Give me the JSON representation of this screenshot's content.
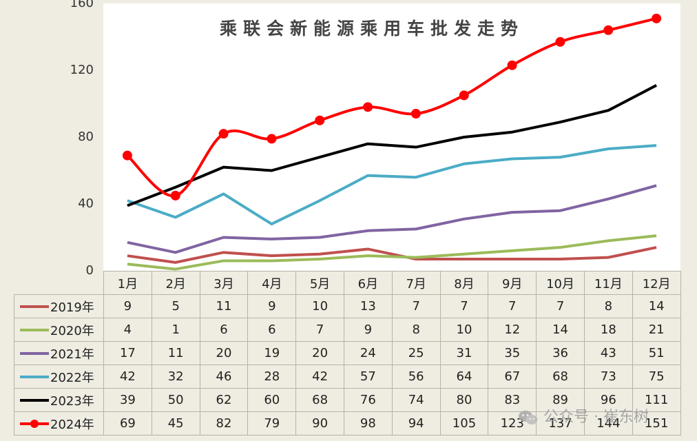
{
  "chart_data": {
    "type": "line",
    "title": "乘联会新能源乘用车批发走势",
    "categories": [
      "1月",
      "2月",
      "3月",
      "4月",
      "5月",
      "6月",
      "7月",
      "8月",
      "9月",
      "10月",
      "11月",
      "12月"
    ],
    "ylim": [
      0,
      160
    ],
    "yticks": [
      "0",
      "40",
      "80",
      "120",
      "160"
    ],
    "series": [
      {
        "name": "2019年",
        "color": "#c0504d",
        "marker": false,
        "values": [
          9,
          5,
          11,
          9,
          10,
          13,
          7,
          7,
          7,
          7,
          8,
          14
        ],
        "labels": [
          "9",
          "5",
          "11",
          "9",
          "10",
          "13",
          "7",
          "7",
          "7",
          "7",
          "8",
          "14"
        ]
      },
      {
        "name": "2020年",
        "color": "#9bbb59",
        "marker": false,
        "values": [
          4,
          1,
          6,
          6,
          7,
          9,
          8,
          10,
          12,
          14,
          18,
          21
        ],
        "labels": [
          "4",
          "1",
          "6",
          "6",
          "7",
          "9",
          "8",
          "10",
          "12",
          "14",
          "18",
          "21"
        ]
      },
      {
        "name": "2021年",
        "color": "#8064a2",
        "marker": false,
        "values": [
          17,
          11,
          20,
          19,
          20,
          24,
          25,
          31,
          35,
          36,
          43,
          51
        ],
        "labels": [
          "17",
          "11",
          "20",
          "19",
          "20",
          "24",
          "25",
          "31",
          "35",
          "36",
          "43",
          "51"
        ]
      },
      {
        "name": "2022年",
        "color": "#4bacc6",
        "marker": false,
        "values": [
          42,
          32,
          46,
          28,
          42,
          57,
          56,
          64,
          67,
          68,
          73,
          75
        ],
        "labels": [
          "42",
          "32",
          "46",
          "28",
          "42",
          "57",
          "56",
          "64",
          "67",
          "68",
          "73",
          "75"
        ]
      },
      {
        "name": "2023年",
        "color": "#000000",
        "marker": false,
        "values": [
          39,
          50,
          62,
          60,
          68,
          76,
          74,
          80,
          83,
          89,
          96,
          111
        ],
        "labels": [
          "39",
          "50",
          "62",
          "60",
          "68",
          "76",
          "74",
          "80",
          "83",
          "89",
          "96",
          "111"
        ]
      },
      {
        "name": "2024年",
        "color": "#ff0000",
        "marker": true,
        "values": [
          69,
          45,
          82,
          79,
          90,
          98,
          94,
          105,
          123,
          137,
          144,
          151
        ],
        "labels": [
          "69",
          "45",
          "82",
          "79",
          "90",
          "98",
          "94",
          "105",
          "123",
          "137",
          "144",
          "151"
        ]
      }
    ]
  },
  "watermark": "公众号 · 崔东树"
}
